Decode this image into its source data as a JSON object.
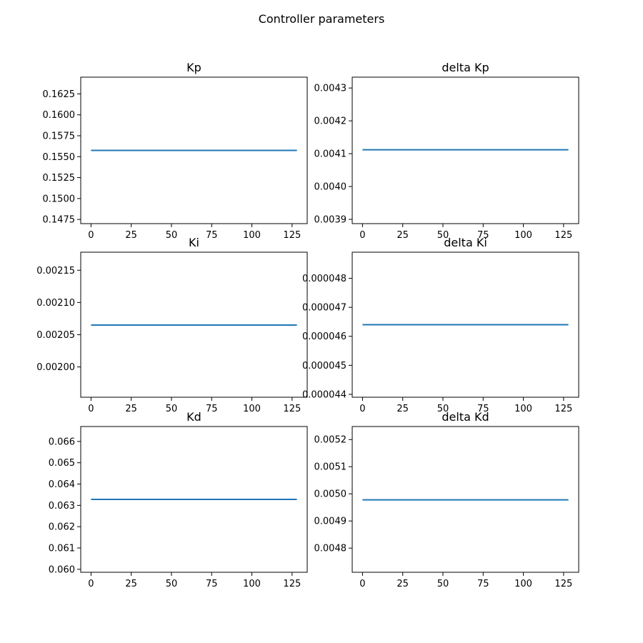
{
  "figure": {
    "suptitle": "Controller parameters",
    "colors": {
      "series": "#1f77b4",
      "axes": "#000000",
      "background": "#ffffff"
    }
  },
  "chart_data": [
    {
      "type": "line",
      "title": "Kp",
      "xlabel": "",
      "ylabel": "",
      "grid": false,
      "xlim": [
        -6.4,
        134.4
      ],
      "ylim": [
        0.147,
        0.1645
      ],
      "xticks": [
        0,
        25,
        50,
        75,
        100,
        125
      ],
      "xtick_labels": [
        "0",
        "25",
        "50",
        "75",
        "100",
        "125"
      ],
      "yticks": [
        0.1475,
        0.15,
        0.1525,
        0.155,
        0.1575,
        0.16,
        0.1625
      ],
      "ytick_labels": [
        "0.1475",
        "0.1500",
        "0.1525",
        "0.1550",
        "0.1575",
        "0.1600",
        "0.1625"
      ],
      "series": [
        {
          "x": [
            0,
            128
          ],
          "y": [
            0.15575,
            0.15575
          ]
        }
      ]
    },
    {
      "type": "line",
      "title": "delta Kp",
      "xlabel": "",
      "ylabel": "",
      "grid": false,
      "xlim": [
        -6.4,
        134.4
      ],
      "ylim": [
        0.003887,
        0.004333
      ],
      "xticks": [
        0,
        25,
        50,
        75,
        100,
        125
      ],
      "xtick_labels": [
        "0",
        "25",
        "50",
        "75",
        "100",
        "125"
      ],
      "yticks": [
        0.0039,
        0.004,
        0.0041,
        0.0042,
        0.0043
      ],
      "ytick_labels": [
        "0.0039",
        "0.0040",
        "0.0041",
        "0.0042",
        "0.0043"
      ],
      "series": [
        {
          "x": [
            0,
            128
          ],
          "y": [
            0.004112,
            0.004112
          ]
        }
      ]
    },
    {
      "type": "line",
      "title": "Ki",
      "xlabel": "",
      "ylabel": "",
      "grid": false,
      "xlim": [
        -6.4,
        134.4
      ],
      "ylim": [
        0.001953,
        0.002178
      ],
      "xticks": [
        0,
        25,
        50,
        75,
        100,
        125
      ],
      "xtick_labels": [
        "0",
        "25",
        "50",
        "75",
        "100",
        "125"
      ],
      "yticks": [
        0.002,
        0.00205,
        0.0021,
        0.00215
      ],
      "ytick_labels": [
        "0.00200",
        "0.00205",
        "0.00210",
        "0.00215"
      ],
      "series": [
        {
          "x": [
            0,
            128
          ],
          "y": [
            0.002065,
            0.002065
          ]
        }
      ]
    },
    {
      "type": "line",
      "title": "delta Ki",
      "xlabel": "",
      "ylabel": "",
      "grid": false,
      "xlim": [
        -6.4,
        134.4
      ],
      "ylim": [
        4.39e-05,
        4.89e-05
      ],
      "xticks": [
        0,
        25,
        50,
        75,
        100,
        125
      ],
      "xtick_labels": [
        "0",
        "25",
        "50",
        "75",
        "100",
        "125"
      ],
      "yticks": [
        4.4e-05,
        4.5e-05,
        4.6e-05,
        4.7e-05,
        4.8e-05
      ],
      "ytick_labels": [
        "0.000044",
        "0.000045",
        "0.000046",
        "0.000047",
        "0.000048"
      ],
      "series": [
        {
          "x": [
            0,
            128
          ],
          "y": [
            4.64e-05,
            4.64e-05
          ]
        }
      ]
    },
    {
      "type": "line",
      "title": "Kd",
      "xlabel": "",
      "ylabel": "",
      "grid": false,
      "xlim": [
        -6.4,
        134.4
      ],
      "ylim": [
        0.05986,
        0.0667
      ],
      "xticks": [
        0,
        25,
        50,
        75,
        100,
        125
      ],
      "xtick_labels": [
        "0",
        "25",
        "50",
        "75",
        "100",
        "125"
      ],
      "yticks": [
        0.06,
        0.061,
        0.062,
        0.063,
        0.064,
        0.065,
        0.066
      ],
      "ytick_labels": [
        "0.060",
        "0.061",
        "0.062",
        "0.063",
        "0.064",
        "0.065",
        "0.066"
      ],
      "series": [
        {
          "x": [
            0,
            128
          ],
          "y": [
            0.06328,
            0.06328
          ]
        }
      ]
    },
    {
      "type": "line",
      "title": "delta Kd",
      "xlabel": "",
      "ylabel": "",
      "grid": false,
      "xlim": [
        -6.4,
        134.4
      ],
      "ylim": [
        0.004711,
        0.005248
      ],
      "xticks": [
        0,
        25,
        50,
        75,
        100,
        125
      ],
      "xtick_labels": [
        "0",
        "25",
        "50",
        "75",
        "100",
        "125"
      ],
      "yticks": [
        0.0048,
        0.0049,
        0.005,
        0.0051,
        0.0052
      ],
      "ytick_labels": [
        "0.0048",
        "0.0049",
        "0.0050",
        "0.0051",
        "0.0052"
      ],
      "series": [
        {
          "x": [
            0,
            128
          ],
          "y": [
            0.004978,
            0.004978
          ]
        }
      ]
    }
  ]
}
